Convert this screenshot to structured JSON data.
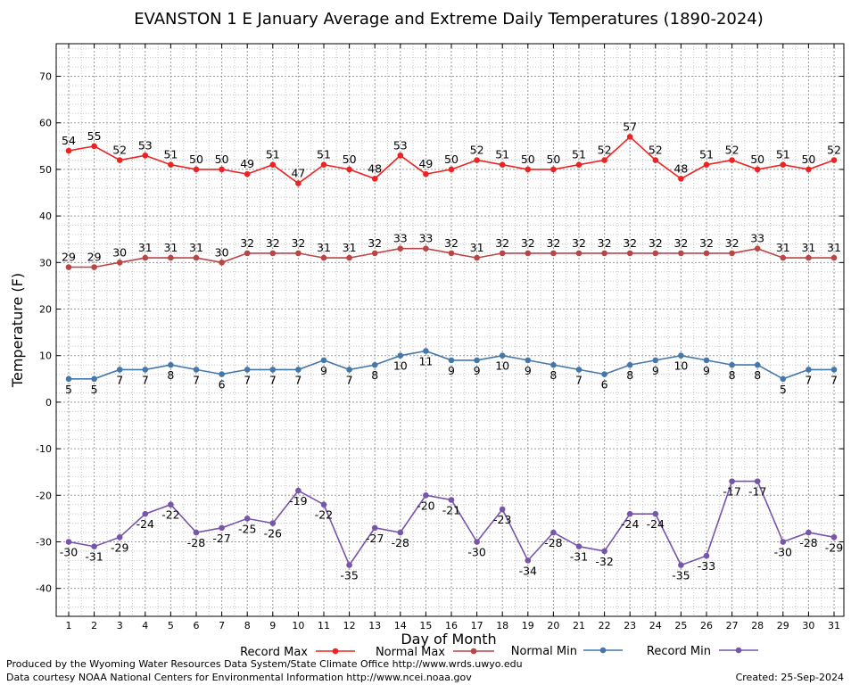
{
  "chart_data": {
    "type": "line",
    "title": "EVANSTON 1 E January Average and Extreme Daily Temperatures (1890-2024)",
    "xlabel": "Day of Month",
    "ylabel": "Temperature (F)",
    "ylim": [
      -46,
      77
    ],
    "yticks": [
      -40,
      -30,
      -20,
      -10,
      0,
      10,
      20,
      30,
      40,
      50,
      60,
      70
    ],
    "x": [
      1,
      2,
      3,
      4,
      5,
      6,
      7,
      8,
      9,
      10,
      11,
      12,
      13,
      14,
      15,
      16,
      17,
      18,
      19,
      20,
      21,
      22,
      23,
      24,
      25,
      26,
      27,
      28,
      29,
      30,
      31
    ],
    "grid": true,
    "legend_position": "bottom",
    "series": [
      {
        "name": "Record Max",
        "color": "#ee2222",
        "label_pos": "above",
        "values": [
          54,
          55,
          52,
          53,
          51,
          50,
          50,
          49,
          51,
          47,
          51,
          50,
          48,
          53,
          49,
          50,
          52,
          51,
          50,
          50,
          51,
          52,
          57,
          52,
          48,
          51,
          52,
          50,
          51,
          50,
          52
        ]
      },
      {
        "name": "Normal Max",
        "color": "#bb4444",
        "label_pos": "above",
        "values": [
          29,
          29,
          30,
          31,
          31,
          31,
          30,
          32,
          32,
          32,
          31,
          31,
          32,
          33,
          33,
          32,
          31,
          32,
          32,
          32,
          32,
          32,
          32,
          32,
          32,
          32,
          32,
          33,
          31,
          31,
          31
        ]
      },
      {
        "name": "Normal Min",
        "color": "#4477aa",
        "label_pos": "below",
        "values": [
          5,
          5,
          7,
          7,
          8,
          7,
          6,
          7,
          7,
          7,
          9,
          7,
          8,
          10,
          11,
          9,
          9,
          10,
          9,
          8,
          7,
          6,
          8,
          9,
          10,
          9,
          8,
          8,
          5,
          7,
          7
        ]
      },
      {
        "name": "Record Min",
        "color": "#7755aa",
        "label_pos": "below",
        "values": [
          -30,
          -31,
          -29,
          -24,
          -22,
          -28,
          -27,
          -25,
          -26,
          -19,
          -22,
          -35,
          -27,
          -28,
          -20,
          -21,
          -30,
          -23,
          -34,
          -28,
          -31,
          -32,
          -24,
          -24,
          -35,
          -33,
          -17,
          -17,
          -30,
          -28,
          -29
        ]
      }
    ]
  },
  "footer": {
    "produced_by": "Produced by the Wyoming Water Resources Data System/State Climate Office http://www.wrds.uwyo.edu",
    "courtesy": "Data courtesy NOAA National Centers for Environmental Information http://www.ncei.noaa.gov",
    "created": "Created: 25-Sep-2024"
  }
}
